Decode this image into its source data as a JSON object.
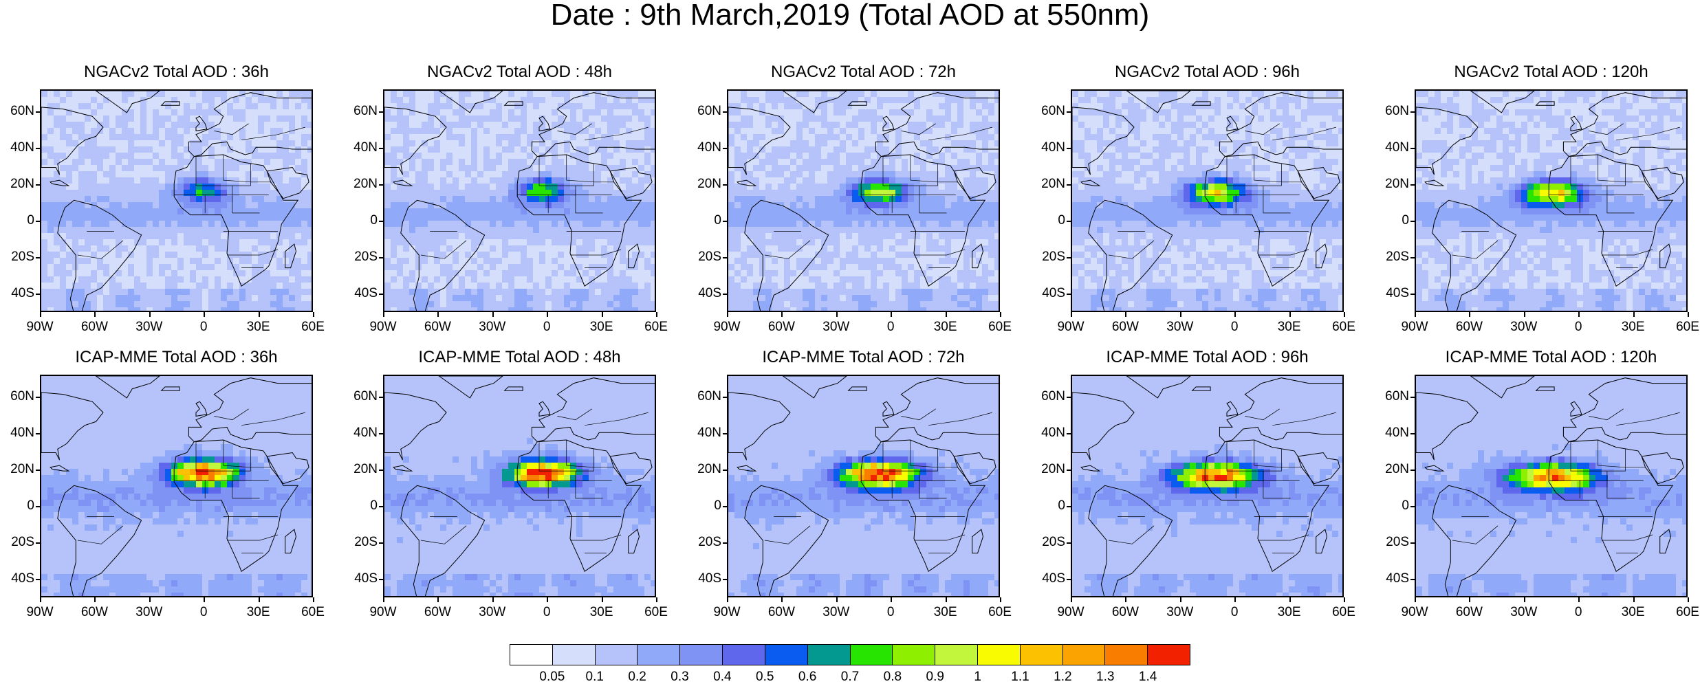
{
  "title": "Date : 9th March,2019 (Total AOD at 550nm)",
  "panels": [
    {
      "title": "NGACv2 Total AOD : 36h",
      "row": 0,
      "model": "NGACv2",
      "lead": "36h"
    },
    {
      "title": "NGACv2 Total AOD : 48h",
      "row": 0,
      "model": "NGACv2",
      "lead": "48h"
    },
    {
      "title": "NGACv2 Total AOD : 72h",
      "row": 0,
      "model": "NGACv2",
      "lead": "72h"
    },
    {
      "title": "NGACv2 Total AOD : 96h",
      "row": 0,
      "model": "NGACv2",
      "lead": "96h"
    },
    {
      "title": "NGACv2 Total AOD : 120h",
      "row": 0,
      "model": "NGACv2",
      "lead": "120h"
    },
    {
      "title": "ICAP-MME Total AOD : 36h",
      "row": 1,
      "model": "ICAP-MME",
      "lead": "36h"
    },
    {
      "title": "ICAP-MME Total AOD : 48h",
      "row": 1,
      "model": "ICAP-MME",
      "lead": "48h"
    },
    {
      "title": "ICAP-MME Total AOD : 72h",
      "row": 1,
      "model": "ICAP-MME",
      "lead": "72h"
    },
    {
      "title": "ICAP-MME Total AOD : 96h",
      "row": 1,
      "model": "ICAP-MME",
      "lead": "96h"
    },
    {
      "title": "ICAP-MME Total AOD : 120h",
      "row": 1,
      "model": "ICAP-MME",
      "lead": "120h"
    }
  ],
  "lat_ticks": [
    "60N",
    "40N",
    "20N",
    "0",
    "20S",
    "40S"
  ],
  "lon_ticks": [
    "90W",
    "60W",
    "30W",
    "0",
    "30E",
    "60E"
  ],
  "map_extent": {
    "lon": [
      -90,
      60
    ],
    "lat": [
      -50,
      72
    ]
  },
  "colorbar": {
    "labels": [
      "0.05",
      "0.1",
      "0.2",
      "0.3",
      "0.4",
      "0.5",
      "0.6",
      "0.7",
      "0.8",
      "0.9",
      "1",
      "1.1",
      "1.2",
      "1.3",
      "1.4"
    ],
    "colors": [
      "#ffffff",
      "#d5defb",
      "#b5c3fa",
      "#91a9f9",
      "#7f93f5",
      "#5f68ec",
      "#0a5cf0",
      "#049990",
      "#27e500",
      "#8fef00",
      "#c1f63d",
      "#f9fb00",
      "#fcc100",
      "#fba300",
      "#f97e00",
      "#f22200"
    ]
  },
  "intensity": {
    "NGACv2": {
      "36h": 0.55,
      "48h": 0.7,
      "72h": 0.85,
      "96h": 0.95,
      "120h": 1.0
    },
    "ICAP-MME": {
      "36h": 1.4,
      "48h": 1.4,
      "72h": 1.4,
      "96h": 1.3,
      "120h": 1.2
    }
  }
}
